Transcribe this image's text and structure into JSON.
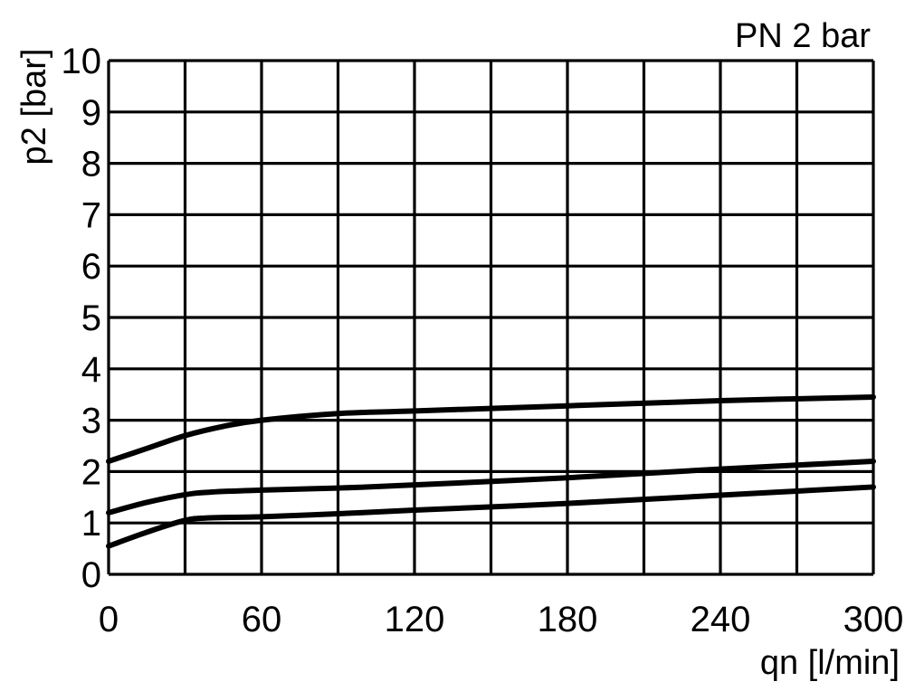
{
  "chart_data": {
    "type": "line",
    "title": "PN 2 bar",
    "xlabel": "qn [l/min]",
    "ylabel": "p2 [bar]",
    "xlim": [
      0,
      300
    ],
    "ylim": [
      0,
      10
    ],
    "x_ticks": [
      0,
      60,
      120,
      180,
      240,
      300
    ],
    "y_ticks": [
      0,
      1,
      2,
      3,
      4,
      5,
      6,
      7,
      8,
      9,
      10
    ],
    "x_grid_step": 30,
    "y_grid_step": 1,
    "grid": true,
    "series": [
      {
        "x": [
          0,
          15,
          30,
          45,
          60,
          90,
          120,
          180,
          240,
          300
        ],
        "y": [
          2.2,
          2.45,
          2.7,
          2.88,
          3.0,
          3.13,
          3.18,
          3.28,
          3.38,
          3.45
        ]
      },
      {
        "x": [
          0,
          15,
          30,
          40,
          60,
          90,
          120,
          180,
          240,
          300
        ],
        "y": [
          1.2,
          1.4,
          1.55,
          1.6,
          1.64,
          1.68,
          1.74,
          1.88,
          2.05,
          2.2
        ]
      },
      {
        "x": [
          0,
          15,
          30,
          40,
          60,
          90,
          120,
          180,
          240,
          300
        ],
        "y": [
          0.55,
          0.82,
          1.05,
          1.1,
          1.12,
          1.18,
          1.25,
          1.38,
          1.54,
          1.7
        ]
      }
    ]
  }
}
